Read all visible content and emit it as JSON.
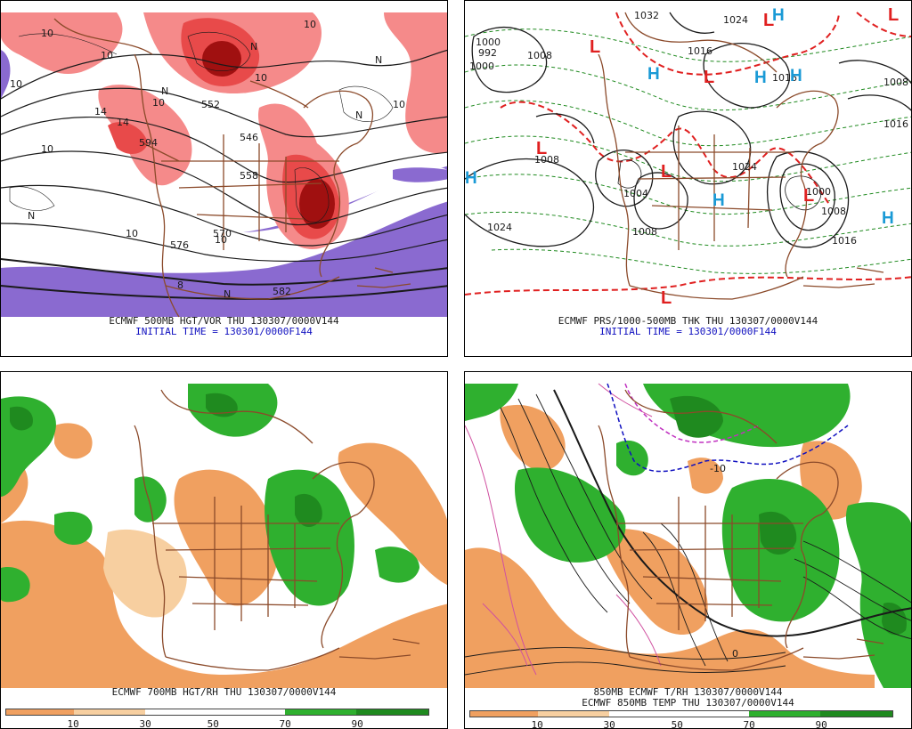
{
  "colors": {
    "vort_light": "#f58a8a",
    "vort_mid": "#e84a4a",
    "vort_dark": "#a01010",
    "neg_vort": "#8a6ad0",
    "borders": "#8b4a2a",
    "pressure_red": "#e02020",
    "thickness_green": "#1f8a1f",
    "rh_dry_dark": "#f0a060",
    "rh_dry_light": "#f7cfa0",
    "rh_moist": "#2fb02f",
    "rh_moist_dark": "#1f8a1f",
    "caption_blue": "#1010c0",
    "high_blue": "#1a9ad6",
    "low_red": "#e02020"
  },
  "panels": {
    "top_left": {
      "caption": "ECMWF 500MB HGT/VOR THU 130307/0000V144",
      "subcaption": "INITIAL TIME = 130301/0000F144",
      "labels": [
        "10",
        "10",
        "14",
        "10",
        "N",
        "594",
        "14",
        "10",
        "10",
        "N",
        "N",
        "552",
        "546",
        "558",
        "570",
        "10",
        "576",
        "N",
        "582",
        "N",
        "8",
        "N",
        "10",
        "10",
        "10",
        "10"
      ]
    },
    "top_right": {
      "caption": "ECMWF PRS/1000-500MB THK THU 130307/0000V144",
      "subcaption": "INITIAL TIME = 130301/0000F144",
      "pressure_labels": [
        "1024",
        "1008",
        "1004",
        "1008",
        "1000",
        "1008",
        "1016",
        "1024",
        "1000",
        "1008",
        "1016",
        "1016",
        "1008",
        "1016",
        "1000",
        "992",
        "1032",
        "1024"
      ],
      "lows": [
        "L",
        "L",
        "L",
        "L",
        "L",
        "L",
        "L",
        "L"
      ],
      "highs": [
        "H",
        "H",
        "H",
        "H",
        "H",
        "H",
        "H"
      ]
    },
    "bottom_left": {
      "caption": "ECMWF 700MB HGT/RH THU 130307/0000V144",
      "colorbar_ticks": [
        "10",
        "30",
        "50",
        "70",
        "90"
      ]
    },
    "bottom_right": {
      "caption": "850MB ECMWF T/RH 130307/0000V144",
      "subcaption": "ECMWF 850MB TEMP THU 130307/0000V144",
      "labels": [
        "-10",
        "0"
      ],
      "colorbar_ticks": [
        "10",
        "30",
        "50",
        "70",
        "90"
      ]
    }
  }
}
